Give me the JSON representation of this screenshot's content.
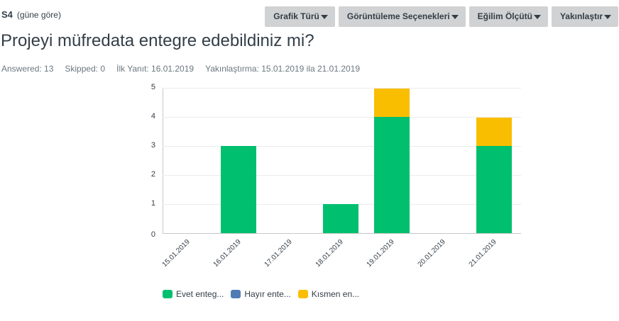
{
  "question": {
    "number": "S4",
    "grouping": "(güne göre)",
    "title": "Projeyi müfredata entegre edebildiniz mi?"
  },
  "toolbar": {
    "buttons": [
      {
        "label": "Grafik Türü"
      },
      {
        "label": "Görüntüleme Seçenekleri"
      },
      {
        "label": "Eğilim Ölçütü"
      },
      {
        "label": "Yakınlaştır"
      }
    ]
  },
  "meta": {
    "answered": "Answered: 13",
    "skipped": "Skipped: 0",
    "first_response": "İlk Yanıt: 16.01.2019",
    "zoom_range": "Yakınlaştırma: 15.01.2019 ila 21.01.2019"
  },
  "legend": [
    {
      "label": "Evet enteg...",
      "color": "#00bf6f"
    },
    {
      "label": "Hayır ente...",
      "color": "#507cb6"
    },
    {
      "label": "Kısmen en...",
      "color": "#f9be00"
    }
  ],
  "chart_data": {
    "type": "bar",
    "stacked": true,
    "title": "Projeyi müfredata entegre edebildiniz mi?",
    "xlabel": "",
    "ylabel": "",
    "ylim": [
      0,
      5
    ],
    "yticks": [
      0,
      1,
      2,
      3,
      4,
      5
    ],
    "grid": true,
    "legend_position": "bottom",
    "categories": [
      "15.01.2019",
      "16.01.2019",
      "17.01.2019",
      "18.01.2019",
      "19.01.2019",
      "20.01.2019",
      "21.01.2019"
    ],
    "series": [
      {
        "name": "Evet enteg...",
        "color": "#00bf6f",
        "values": [
          0,
          3,
          0,
          1,
          4,
          0,
          3
        ]
      },
      {
        "name": "Hayır ente...",
        "color": "#507cb6",
        "values": [
          0,
          0,
          0,
          0,
          0,
          0,
          0
        ]
      },
      {
        "name": "Kısmen en...",
        "color": "#f9be00",
        "values": [
          0,
          0,
          0,
          0,
          1,
          0,
          1
        ]
      }
    ]
  }
}
